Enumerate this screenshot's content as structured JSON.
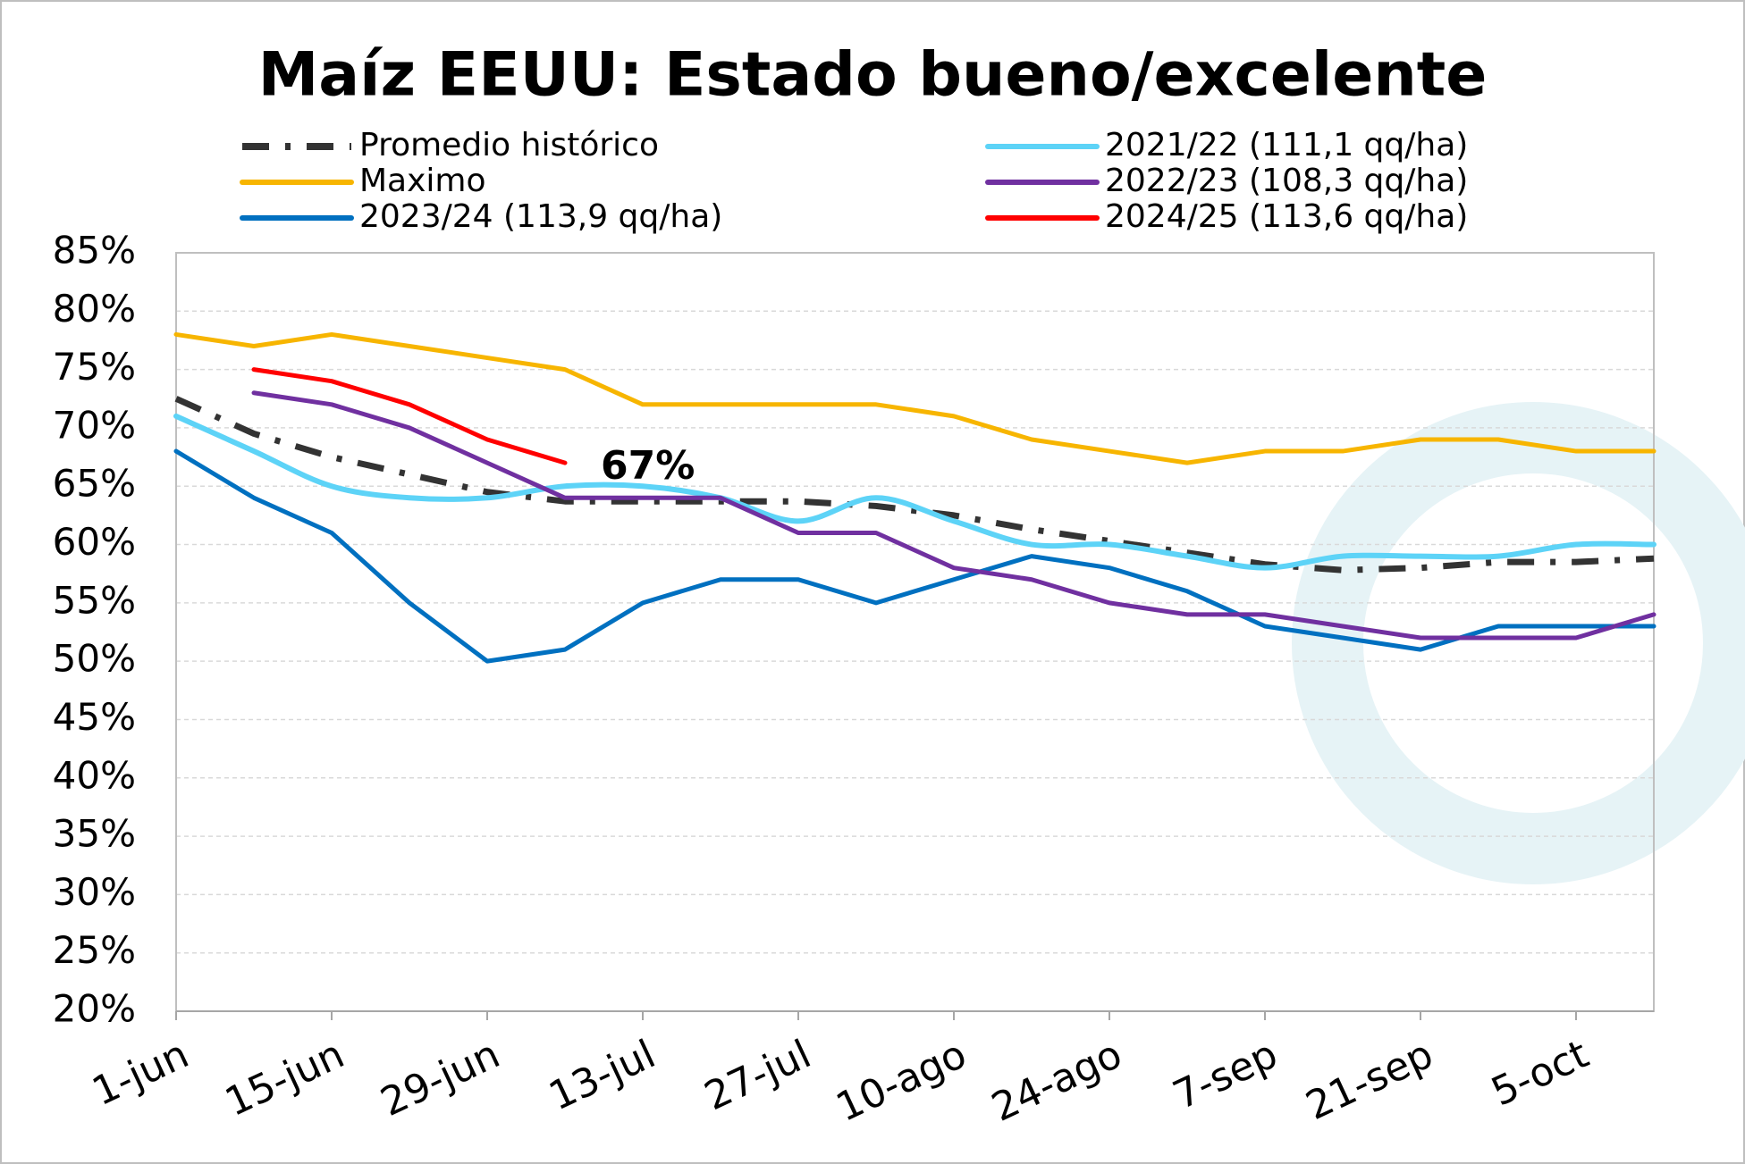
{
  "chart_data": {
    "type": "line",
    "title": "Maíz EEUU: Estado bueno/excelente",
    "categories": [
      "1-jun",
      null,
      "15-jun",
      null,
      "29-jun",
      null,
      "13-jul",
      null,
      "27-jul",
      null,
      "10-ago",
      null,
      "24-ago",
      null,
      "7-sep",
      null,
      "21-sep",
      null,
      "5-oct",
      null
    ],
    "ylim": [
      20,
      85
    ],
    "yticks": [
      {
        "value": 20,
        "label": "20%"
      },
      {
        "value": 25,
        "label": "25%"
      },
      {
        "value": 30,
        "label": "30%"
      },
      {
        "value": 35,
        "label": "35%"
      },
      {
        "value": 40,
        "label": "40%"
      },
      {
        "value": 45,
        "label": "45%"
      },
      {
        "value": 50,
        "label": "50%"
      },
      {
        "value": 55,
        "label": "55%"
      },
      {
        "value": 60,
        "label": "60%"
      },
      {
        "value": 65,
        "label": "65%"
      },
      {
        "value": 70,
        "label": "70%"
      },
      {
        "value": 75,
        "label": "75%"
      },
      {
        "value": 80,
        "label": "80%"
      },
      {
        "value": 85,
        "label": "85%"
      }
    ],
    "grid": true,
    "series": [
      {
        "name": "Promedio histórico",
        "color": "#333333",
        "dash": "dash-dot",
        "values": [
          72.5,
          69.5,
          67.5,
          66,
          64.5,
          63.7,
          63.7,
          63.7,
          63.7,
          63.3,
          62.5,
          61.3,
          60.3,
          59.3,
          58.3,
          57.8,
          58,
          58.5,
          58.5,
          58.8
        ]
      },
      {
        "name": "Maximo",
        "color": "#f7b500",
        "values": [
          78,
          77,
          78,
          77,
          76,
          75,
          72,
          72,
          72,
          72,
          71,
          69,
          68,
          67,
          68,
          68,
          69,
          69,
          68,
          68
        ]
      },
      {
        "name": "2023/24 (113,9 qq/ha)",
        "color": "#0070c0",
        "values": [
          68,
          64,
          61,
          55,
          50,
          51,
          55,
          57,
          57,
          55,
          57,
          59,
          58,
          56,
          53,
          52,
          51,
          53,
          53,
          53
        ]
      },
      {
        "name": "2021/22 (111,1 qq/ha)",
        "color": "#5dd3f7",
        "smooth": true,
        "values": [
          71,
          68,
          65,
          64,
          64,
          65,
          65,
          64,
          62,
          64,
          62,
          60,
          60,
          59,
          58,
          59,
          59,
          59,
          60,
          60
        ]
      },
      {
        "name": "2022/23 (108,3 qq/ha)",
        "color": "#7030a0",
        "values": [
          null,
          73,
          72,
          70,
          67,
          64,
          64,
          64,
          61,
          61,
          58,
          57,
          55,
          54,
          54,
          53,
          52,
          52,
          52,
          54
        ]
      },
      {
        "name": "2024/25 (113,6 qq/ha)",
        "color": "#ff0000",
        "values": [
          null,
          75,
          74,
          72,
          69,
          67,
          null,
          null,
          null,
          null,
          null,
          null,
          null,
          null,
          null,
          null,
          null,
          null,
          null,
          null
        ],
        "value_labels": [
          null,
          null,
          null,
          null,
          null,
          "67%",
          null,
          null,
          null,
          null,
          null,
          null,
          null,
          null,
          null,
          null,
          null,
          null,
          null,
          null
        ]
      }
    ]
  }
}
